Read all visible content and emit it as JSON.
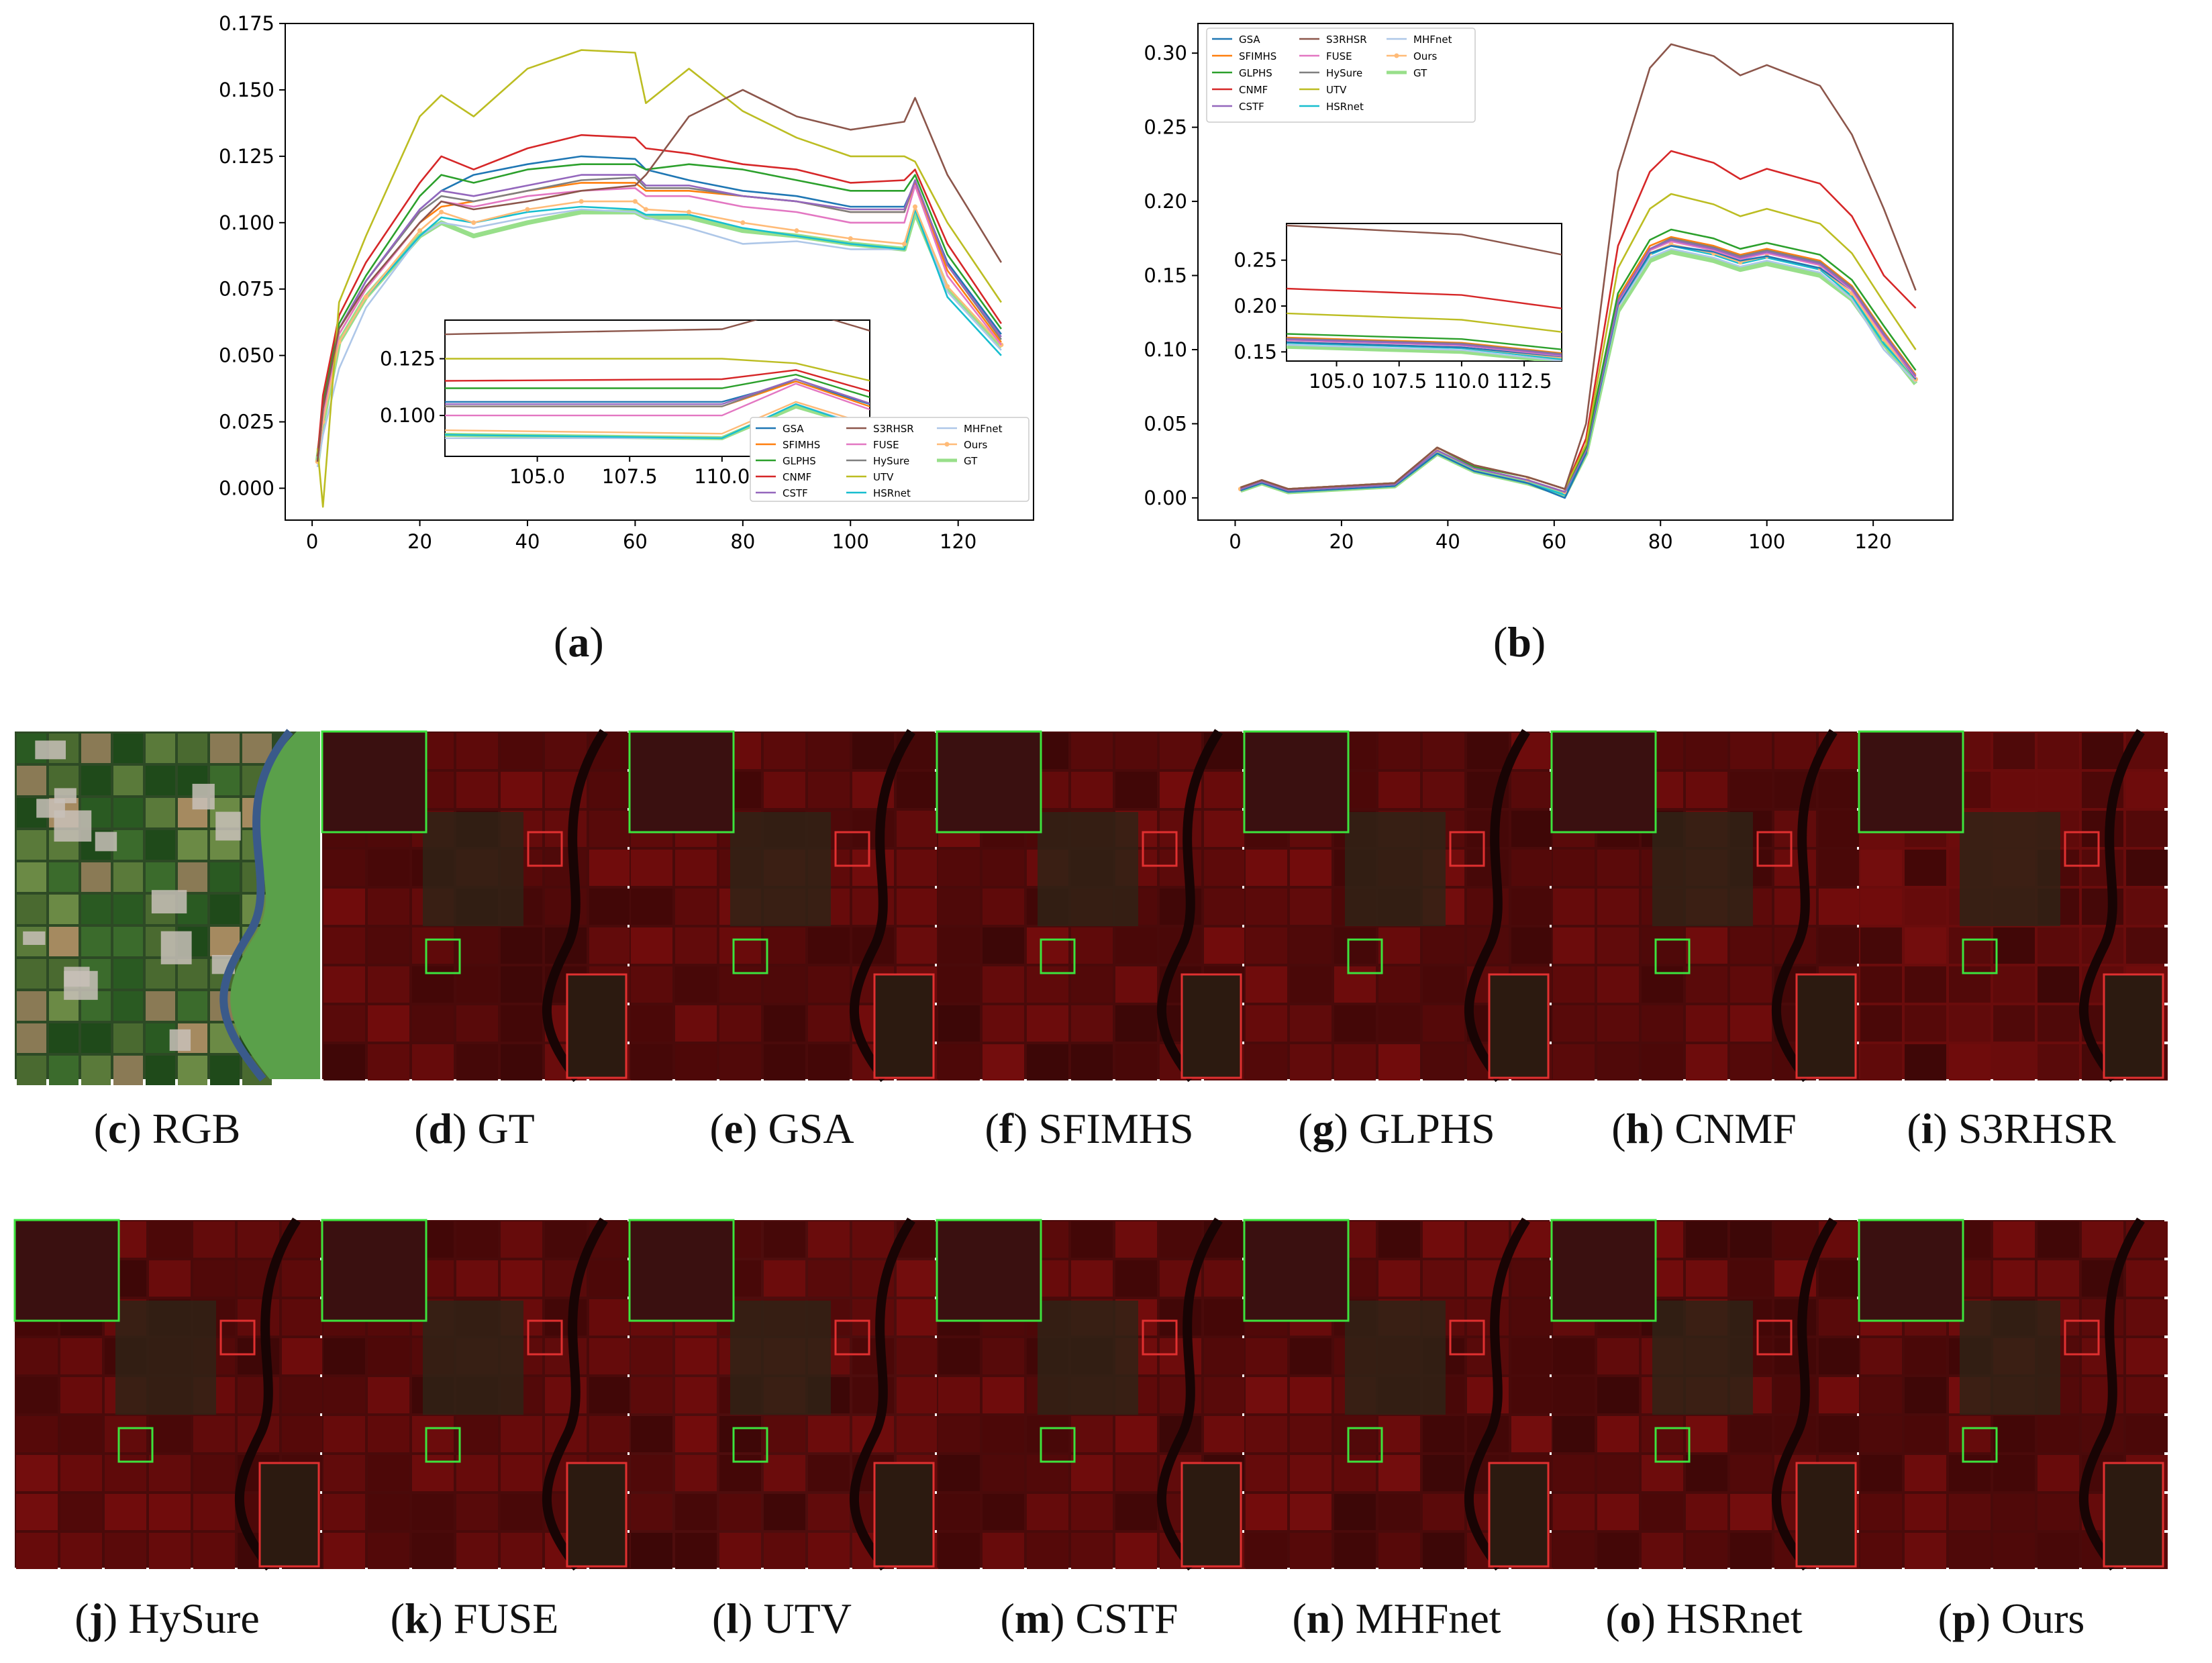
{
  "colors": {
    "GSA": "#1f77b4",
    "SFIMHS": "#ff7f0e",
    "GLPHS": "#2ca02c",
    "CNMF": "#d62728",
    "CSTF": "#9467bd",
    "S3RHSR": "#8c564b",
    "FUSE": "#e377c2",
    "HySure": "#7f7f7f",
    "UTV": "#bcbd22",
    "HSRnet": "#17becf",
    "MHFnet": "#aec7e8",
    "Ours": "#ffbb78",
    "GT": "#98df8a",
    "box_zoom_green": "#3de33d",
    "box_zoom_red": "#e03030"
  },
  "legend_names": [
    "GSA",
    "SFIMHS",
    "GLPHS",
    "CNMF",
    "CSTF",
    "S3RHSR",
    "FUSE",
    "HySure",
    "UTV",
    "HSRnet",
    "MHFnet",
    "Ours",
    "GT"
  ],
  "panel_a": {
    "letter": "a",
    "yticks": [
      "0.000",
      "0.025",
      "0.050",
      "0.075",
      "0.100",
      "0.125",
      "0.150",
      "0.175"
    ],
    "xticks": [
      "0",
      "20",
      "40",
      "60",
      "80",
      "100",
      "120"
    ],
    "inset_yticks": [
      "0.100",
      "0.125"
    ],
    "inset_xticks": [
      "105.0",
      "107.5",
      "110.0",
      "112.5"
    ]
  },
  "panel_b": {
    "letter": "b",
    "yticks": [
      "0.00",
      "0.05",
      "0.10",
      "0.15",
      "0.20",
      "0.25",
      "0.30"
    ],
    "xticks": [
      "0",
      "20",
      "40",
      "60",
      "80",
      "100",
      "120"
    ],
    "inset_yticks": [
      "0.15",
      "0.20",
      "0.25"
    ],
    "inset_xticks": [
      "105.0",
      "107.5",
      "110.0",
      "112.5"
    ]
  },
  "chart_data": [
    {
      "type": "line",
      "panel": "a",
      "xlim": [
        -5,
        134
      ],
      "ylim": [
        -0.012,
        0.175
      ],
      "x": [
        1,
        2,
        5,
        10,
        20,
        24,
        30,
        40,
        50,
        60,
        62,
        70,
        80,
        90,
        100,
        110,
        112,
        118,
        128
      ],
      "series": [
        {
          "name": "GSA",
          "values": [
            0.01,
            0.03,
            0.06,
            0.078,
            0.105,
            0.112,
            0.118,
            0.122,
            0.125,
            0.124,
            0.12,
            0.116,
            0.112,
            0.11,
            0.106,
            0.106,
            0.115,
            0.085,
            0.058
          ]
        },
        {
          "name": "SFIMHS",
          "values": [
            0.01,
            0.028,
            0.058,
            0.075,
            0.1,
            0.106,
            0.108,
            0.112,
            0.115,
            0.115,
            0.112,
            0.112,
            0.11,
            0.108,
            0.104,
            0.104,
            0.115,
            0.082,
            0.055
          ]
        },
        {
          "name": "GLPHS",
          "values": [
            0.012,
            0.032,
            0.062,
            0.08,
            0.11,
            0.118,
            0.115,
            0.12,
            0.122,
            0.122,
            0.12,
            0.122,
            0.12,
            0.116,
            0.112,
            0.112,
            0.118,
            0.088,
            0.06
          ]
        },
        {
          "name": "CNMF",
          "values": [
            0.012,
            0.035,
            0.065,
            0.085,
            0.115,
            0.125,
            0.12,
            0.128,
            0.133,
            0.132,
            0.128,
            0.126,
            0.122,
            0.12,
            0.115,
            0.116,
            0.12,
            0.092,
            0.062
          ]
        },
        {
          "name": "CSTF",
          "values": [
            0.01,
            0.03,
            0.06,
            0.078,
            0.105,
            0.112,
            0.11,
            0.114,
            0.118,
            0.118,
            0.114,
            0.114,
            0.11,
            0.108,
            0.105,
            0.105,
            0.116,
            0.084,
            0.057
          ]
        },
        {
          "name": "S3RHSR",
          "values": [
            0.01,
            0.03,
            0.06,
            0.076,
            0.1,
            0.108,
            0.105,
            0.108,
            0.112,
            0.114,
            0.118,
            0.14,
            0.15,
            0.14,
            0.135,
            0.138,
            0.147,
            0.118,
            0.085
          ]
        },
        {
          "name": "FUSE",
          "values": [
            0.01,
            0.028,
            0.058,
            0.075,
            0.1,
            0.108,
            0.106,
            0.11,
            0.112,
            0.113,
            0.11,
            0.11,
            0.106,
            0.104,
            0.1,
            0.1,
            0.114,
            0.08,
            0.054
          ]
        },
        {
          "name": "HySure",
          "values": [
            0.01,
            0.03,
            0.06,
            0.078,
            0.104,
            0.11,
            0.108,
            0.112,
            0.116,
            0.117,
            0.113,
            0.113,
            0.11,
            0.108,
            0.104,
            0.104,
            0.116,
            0.084,
            0.056
          ]
        },
        {
          "name": "UTV",
          "values": [
            0.015,
            -0.007,
            0.07,
            0.095,
            0.14,
            0.148,
            0.14,
            0.158,
            0.165,
            0.164,
            0.145,
            0.158,
            0.142,
            0.132,
            0.125,
            0.125,
            0.123,
            0.1,
            0.07
          ]
        },
        {
          "name": "HSRnet",
          "values": [
            0.01,
            0.025,
            0.055,
            0.072,
            0.095,
            0.102,
            0.1,
            0.104,
            0.106,
            0.105,
            0.103,
            0.103,
            0.098,
            0.095,
            0.092,
            0.09,
            0.105,
            0.072,
            0.05
          ]
        },
        {
          "name": "MHFnet",
          "values": [
            0.008,
            0.02,
            0.045,
            0.068,
            0.095,
            0.1,
            0.098,
            0.102,
            0.105,
            0.104,
            0.102,
            0.098,
            0.092,
            0.093,
            0.09,
            0.09,
            0.105,
            0.074,
            0.052
          ]
        },
        {
          "name": "Ours",
          "values": [
            0.01,
            0.025,
            0.055,
            0.072,
            0.097,
            0.104,
            0.1,
            0.105,
            0.108,
            0.108,
            0.105,
            0.104,
            0.1,
            0.097,
            0.094,
            0.092,
            0.106,
            0.076,
            0.054
          ]
        },
        {
          "name": "GT",
          "values": [
            0.01,
            0.025,
            0.055,
            0.072,
            0.095,
            0.1,
            0.095,
            0.1,
            0.104,
            0.104,
            0.102,
            0.102,
            0.097,
            0.095,
            0.092,
            0.09,
            0.104,
            0.075,
            0.053
          ]
        }
      ],
      "inset": {
        "xlim": [
          102.5,
          114
        ],
        "ylim": [
          0.082,
          0.142
        ]
      }
    },
    {
      "type": "line",
      "panel": "b",
      "xlim": [
        -7,
        135
      ],
      "ylim": [
        -0.015,
        0.32
      ],
      "x": [
        1,
        5,
        10,
        20,
        30,
        38,
        45,
        55,
        62,
        66,
        72,
        78,
        82,
        90,
        95,
        100,
        110,
        116,
        122,
        128
      ],
      "series": [
        {
          "name": "GSA",
          "values": [
            0.005,
            0.01,
            0.004,
            0.006,
            0.008,
            0.03,
            0.018,
            0.01,
            0.0,
            0.03,
            0.13,
            0.165,
            0.17,
            0.166,
            0.16,
            0.163,
            0.155,
            0.14,
            0.11,
            0.08
          ]
        },
        {
          "name": "SFIMHS",
          "values": [
            0.006,
            0.011,
            0.005,
            0.007,
            0.009,
            0.032,
            0.02,
            0.012,
            0.004,
            0.032,
            0.135,
            0.17,
            0.176,
            0.17,
            0.164,
            0.168,
            0.16,
            0.143,
            0.112,
            0.083
          ]
        },
        {
          "name": "GLPHS",
          "values": [
            0.007,
            0.012,
            0.006,
            0.008,
            0.01,
            0.034,
            0.021,
            0.014,
            0.006,
            0.034,
            0.138,
            0.174,
            0.181,
            0.175,
            0.168,
            0.172,
            0.164,
            0.147,
            0.116,
            0.086
          ]
        },
        {
          "name": "CNMF",
          "values": [
            0.007,
            0.012,
            0.006,
            0.008,
            0.01,
            0.034,
            0.022,
            0.014,
            0.006,
            0.04,
            0.17,
            0.22,
            0.234,
            0.226,
            0.215,
            0.222,
            0.212,
            0.19,
            0.15,
            0.128
          ]
        },
        {
          "name": "CSTF",
          "values": [
            0.006,
            0.011,
            0.005,
            0.007,
            0.009,
            0.032,
            0.02,
            0.012,
            0.004,
            0.032,
            0.133,
            0.168,
            0.174,
            0.168,
            0.162,
            0.166,
            0.158,
            0.141,
            0.11,
            0.082
          ]
        },
        {
          "name": "S3RHSR",
          "values": [
            0.007,
            0.012,
            0.006,
            0.008,
            0.01,
            0.034,
            0.022,
            0.014,
            0.006,
            0.05,
            0.22,
            0.29,
            0.306,
            0.298,
            0.285,
            0.292,
            0.278,
            0.245,
            0.195,
            0.14
          ]
        },
        {
          "name": "FUSE",
          "values": [
            0.006,
            0.011,
            0.005,
            0.007,
            0.009,
            0.032,
            0.02,
            0.012,
            0.004,
            0.032,
            0.132,
            0.167,
            0.173,
            0.167,
            0.161,
            0.165,
            0.157,
            0.14,
            0.109,
            0.081
          ]
        },
        {
          "name": "HySure",
          "values": [
            0.006,
            0.011,
            0.005,
            0.007,
            0.009,
            0.032,
            0.02,
            0.012,
            0.004,
            0.032,
            0.133,
            0.168,
            0.175,
            0.169,
            0.163,
            0.167,
            0.159,
            0.142,
            0.111,
            0.082
          ]
        },
        {
          "name": "UTV",
          "values": [
            0.007,
            0.012,
            0.006,
            0.008,
            0.01,
            0.034,
            0.022,
            0.014,
            0.006,
            0.036,
            0.155,
            0.195,
            0.205,
            0.198,
            0.19,
            0.195,
            0.185,
            0.165,
            0.132,
            0.1
          ]
        },
        {
          "name": "HSRnet",
          "values": [
            0.005,
            0.01,
            0.004,
            0.006,
            0.008,
            0.03,
            0.018,
            0.01,
            0.002,
            0.03,
            0.13,
            0.164,
            0.17,
            0.164,
            0.158,
            0.162,
            0.154,
            0.136,
            0.104,
            0.08
          ]
        },
        {
          "name": "MHFnet",
          "values": [
            0.005,
            0.01,
            0.004,
            0.006,
            0.008,
            0.03,
            0.018,
            0.01,
            0.002,
            0.03,
            0.128,
            0.162,
            0.168,
            0.162,
            0.156,
            0.16,
            0.152,
            0.134,
            0.1,
            0.078
          ]
        },
        {
          "name": "Ours",
          "values": [
            0.006,
            0.011,
            0.005,
            0.007,
            0.009,
            0.032,
            0.02,
            0.012,
            0.004,
            0.032,
            0.13,
            0.165,
            0.171,
            0.165,
            0.159,
            0.163,
            0.155,
            0.138,
            0.107,
            0.08
          ]
        },
        {
          "name": "GT",
          "values": [
            0.005,
            0.01,
            0.004,
            0.006,
            0.008,
            0.03,
            0.018,
            0.01,
            0.002,
            0.03,
            0.126,
            0.16,
            0.166,
            0.16,
            0.154,
            0.158,
            0.15,
            0.134,
            0.104,
            0.077
          ]
        }
      ],
      "inset": {
        "xlim": [
          103,
          114
        ],
        "ylim": [
          0.14,
          0.29
        ]
      }
    }
  ],
  "figures": [
    {
      "letter": "c",
      "label": "RGB",
      "kind": "rgb"
    },
    {
      "letter": "d",
      "label": "GT",
      "kind": "red"
    },
    {
      "letter": "e",
      "label": "GSA",
      "kind": "red"
    },
    {
      "letter": "f",
      "label": "SFIMHS",
      "kind": "red"
    },
    {
      "letter": "g",
      "label": "GLPHS",
      "kind": "red"
    },
    {
      "letter": "h",
      "label": "CNMF",
      "kind": "red"
    },
    {
      "letter": "i",
      "label": "S3RHSR",
      "kind": "red"
    },
    {
      "letter": "j",
      "label": "HySure",
      "kind": "red"
    },
    {
      "letter": "k",
      "label": "FUSE",
      "kind": "red"
    },
    {
      "letter": "l",
      "label": "UTV",
      "kind": "red"
    },
    {
      "letter": "m",
      "label": "CSTF",
      "kind": "red"
    },
    {
      "letter": "n",
      "label": "MHFnet",
      "kind": "red"
    },
    {
      "letter": "o",
      "label": "HSRnet",
      "kind": "red"
    },
    {
      "letter": "p",
      "label": "Ours",
      "kind": "red"
    }
  ]
}
